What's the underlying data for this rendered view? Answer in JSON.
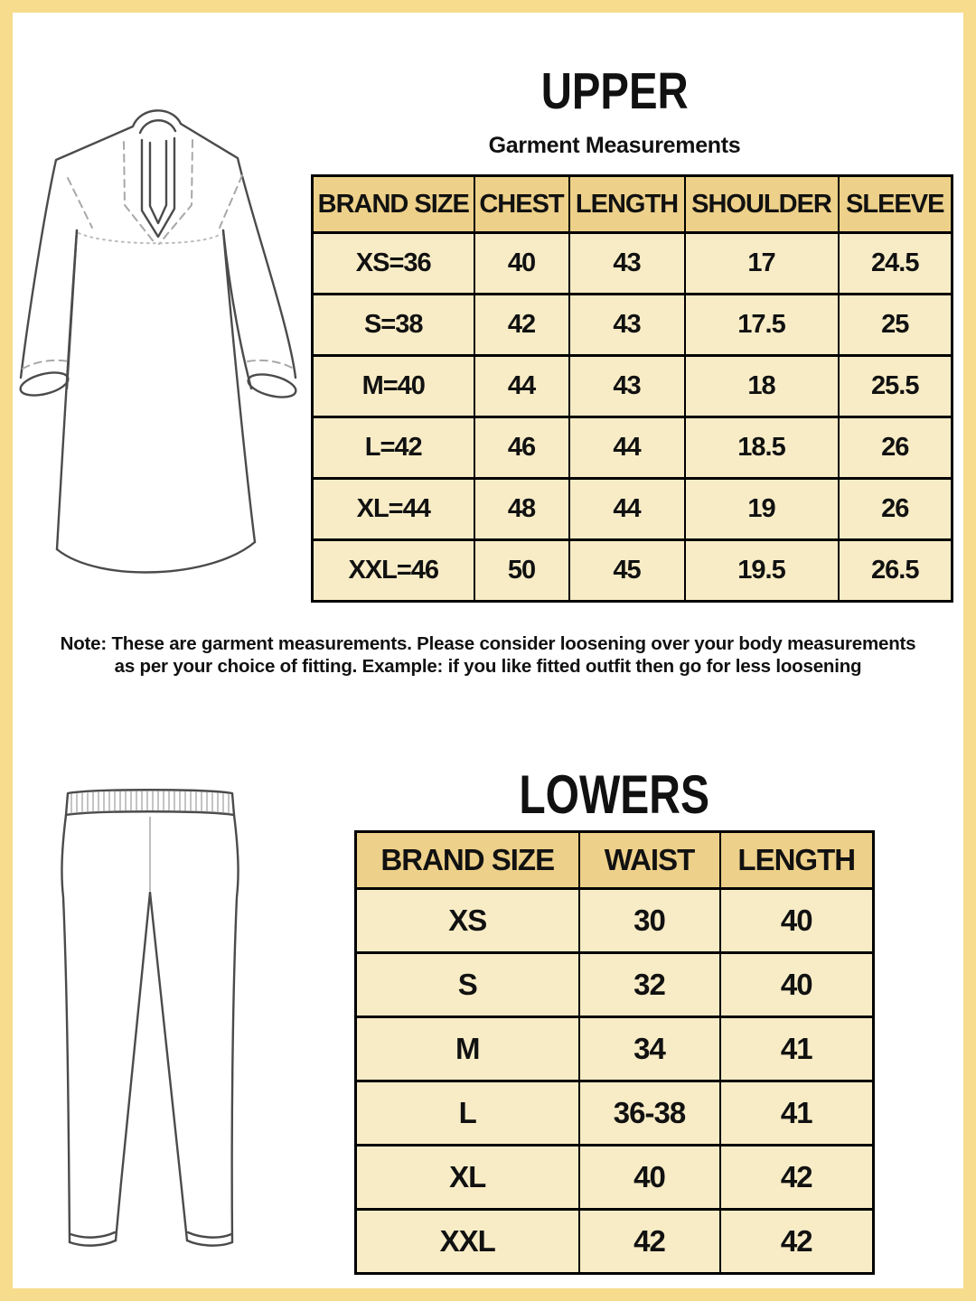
{
  "upper": {
    "title": "UPPER",
    "subtitle": "Garment Measurements",
    "figure": "kurta-technical-sketch",
    "table": {
      "headers": [
        "BRAND SIZE",
        "CHEST",
        "LENGTH",
        "SHOULDER",
        "SLEEVE"
      ],
      "rows": [
        [
          "XS=36",
          "40",
          "43",
          "17",
          "24.5"
        ],
        [
          "S=38",
          "42",
          "43",
          "17.5",
          "25"
        ],
        [
          "M=40",
          "44",
          "43",
          "18",
          "25.5"
        ],
        [
          "L=42",
          "46",
          "44",
          "18.5",
          "26"
        ],
        [
          "XL=44",
          "48",
          "44",
          "19",
          "26"
        ],
        [
          "XXL=46",
          "50",
          "45",
          "19.5",
          "26.5"
        ]
      ]
    }
  },
  "note": {
    "line1": "Note: These are garment measurements. Please consider loosening over your body measurements",
    "line2": "as per your choice of fitting. Example: if you like fitted outfit then go for less loosening"
  },
  "lowers": {
    "title": "LOWERS",
    "figure": "leggings-technical-sketch",
    "table": {
      "headers": [
        "BRAND SIZE",
        "WAIST",
        "LENGTH"
      ],
      "rows": [
        [
          "XS",
          "30",
          "40"
        ],
        [
          "S",
          "32",
          "40"
        ],
        [
          "M",
          "34",
          "41"
        ],
        [
          "L",
          "36-38",
          "41"
        ],
        [
          "XL",
          "40",
          "42"
        ],
        [
          "XXL",
          "42",
          "42"
        ]
      ]
    }
  },
  "colors": {
    "frame": "#f6dc8c",
    "table_header_fill": "#edd089",
    "table_row_fill": "#f8ecc6",
    "table_border": "#000000",
    "text": "#111111",
    "sketch_line": "#4b4b4b"
  }
}
